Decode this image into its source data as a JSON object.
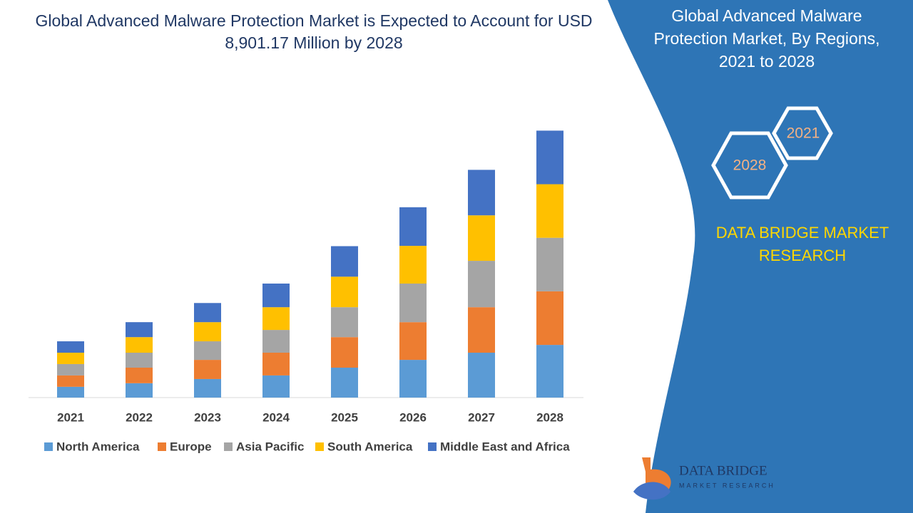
{
  "chart_data": {
    "type": "stacked_bar",
    "title": "Global Advanced Malware Protection Market is Expected to Account for USD 8,901.17 Million by 2028",
    "categories": [
      "2021",
      "2022",
      "2023",
      "2024",
      "2025",
      "2026",
      "2027",
      "2028"
    ],
    "series": [
      {
        "name": "North America",
        "color": "#5b9bd5",
        "values": [
          360,
          480,
          620,
          740,
          1000,
          1260,
          1500,
          1760
        ]
      },
      {
        "name": "Europe",
        "color": "#ed7d31",
        "values": [
          380,
          520,
          640,
          760,
          1020,
          1260,
          1520,
          1790
        ]
      },
      {
        "name": "Asia Pacific",
        "color": "#a5a5a5",
        "values": [
          380,
          500,
          620,
          760,
          1000,
          1290,
          1550,
          1790
        ]
      },
      {
        "name": "South America",
        "color": "#ffc000",
        "values": [
          380,
          520,
          640,
          760,
          1020,
          1260,
          1520,
          1790
        ]
      },
      {
        "name": "Middle East and Africa",
        "color": "#4472c4",
        "values": [
          380,
          500,
          640,
          790,
          1020,
          1290,
          1520,
          1790
        ]
      }
    ],
    "ylim": [
      0,
      10000
    ]
  },
  "panel": {
    "title": "Global Advanced Malware Protection Market, By Regions, 2021 to 2028",
    "year_start": "2021",
    "year_end": "2028",
    "brand": "DATA BRIDGE MARKET RESEARCH",
    "logo_name": "DATA BRIDGE",
    "logo_sub": "MARKET RESEARCH"
  }
}
